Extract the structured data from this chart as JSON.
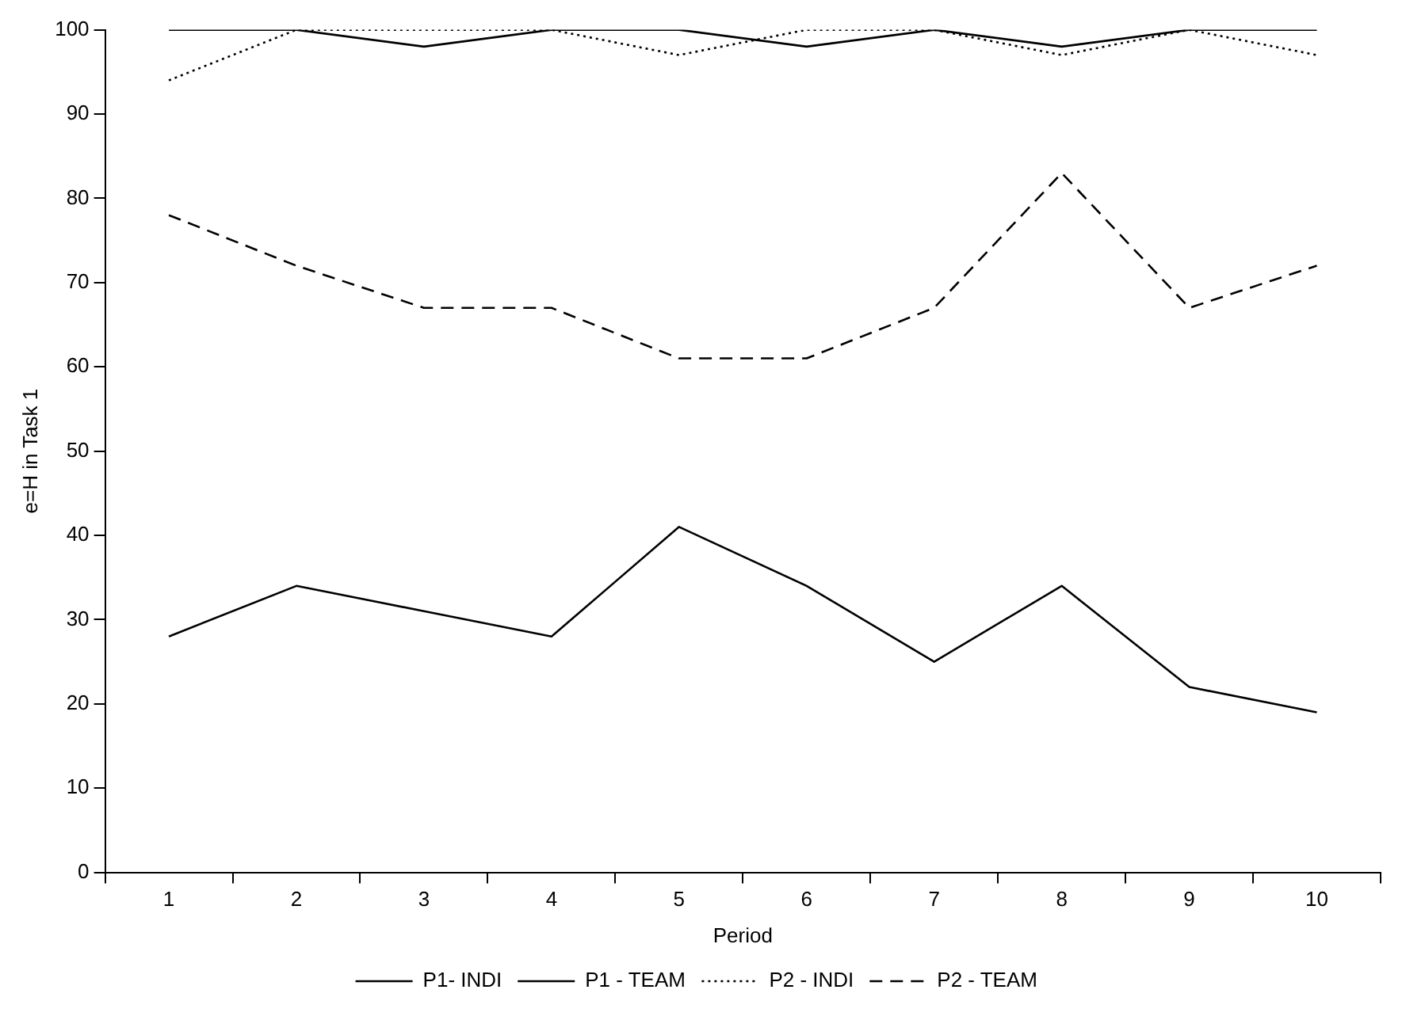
{
  "chart_data": {
    "type": "line",
    "xlabel": "Period",
    "ylabel": "e=H in Task 1",
    "categories": [
      "1",
      "2",
      "3",
      "4",
      "5",
      "6",
      "7",
      "8",
      "9",
      "10"
    ],
    "series": [
      {
        "name": "P1- INDI",
        "color": "#000000",
        "line_style": "solid",
        "values": [
          100,
          100,
          98,
          100,
          100,
          98,
          100,
          98,
          100,
          100
        ]
      },
      {
        "name": "P1 - TEAM",
        "color": "#000000",
        "line_style": "solid",
        "values": [
          28,
          34,
          31,
          28,
          41,
          34,
          25,
          34,
          22,
          19
        ]
      },
      {
        "name": "P2 - INDI",
        "color": "#000000",
        "line_style": "dotted",
        "values": [
          94,
          100,
          100,
          100,
          97,
          100,
          100,
          97,
          100,
          97
        ]
      },
      {
        "name": "P2 - TEAM",
        "color": "#000000",
        "line_style": "dashed",
        "values": [
          78,
          72,
          67,
          67,
          61,
          61,
          67,
          83,
          67,
          72
        ]
      }
    ],
    "ylim": [
      0,
      100
    ],
    "yticks": [
      0,
      10,
      20,
      30,
      40,
      50,
      60,
      70,
      80,
      90,
      100
    ],
    "grid": false,
    "legend": "bottom",
    "marker": "none"
  }
}
